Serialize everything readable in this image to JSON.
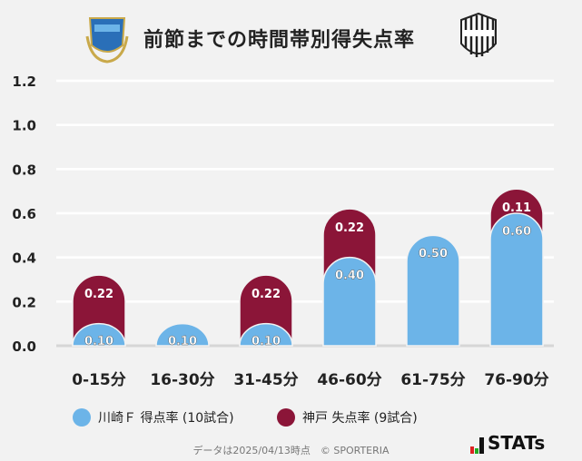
{
  "title": "前節までの時間帯別得失点率",
  "colors": {
    "home": "#6cb4e8",
    "away": "#8b1538"
  },
  "chart_data": {
    "type": "bar",
    "stacked": true,
    "categories": [
      "0-15分",
      "16-30分",
      "31-45分",
      "46-60分",
      "61-75分",
      "76-90分"
    ],
    "series": [
      {
        "name": "川崎Ｆ 得点率 (10試合)",
        "values": [
          0.1,
          0.1,
          0.1,
          0.4,
          0.5,
          0.6
        ],
        "labels": [
          "0.10",
          "0.10",
          "0.10",
          "0.40",
          "0.50",
          "0.60"
        ]
      },
      {
        "name": "神戸 失点率 (9試合)",
        "values": [
          0.22,
          0,
          0.22,
          0.22,
          0,
          0.11
        ],
        "labels": [
          "0.22",
          "",
          "0.22",
          "0.22",
          "",
          "0.11"
        ]
      }
    ],
    "yticks": [
      "0.0",
      "0.2",
      "0.4",
      "0.6",
      "0.8",
      "1.0",
      "1.2"
    ],
    "ylim": [
      0,
      1.2
    ],
    "grid": true,
    "legend": "bottom"
  },
  "footer": "データは2025/04/13時点　© SPORTERIA",
  "brand": "STATs"
}
